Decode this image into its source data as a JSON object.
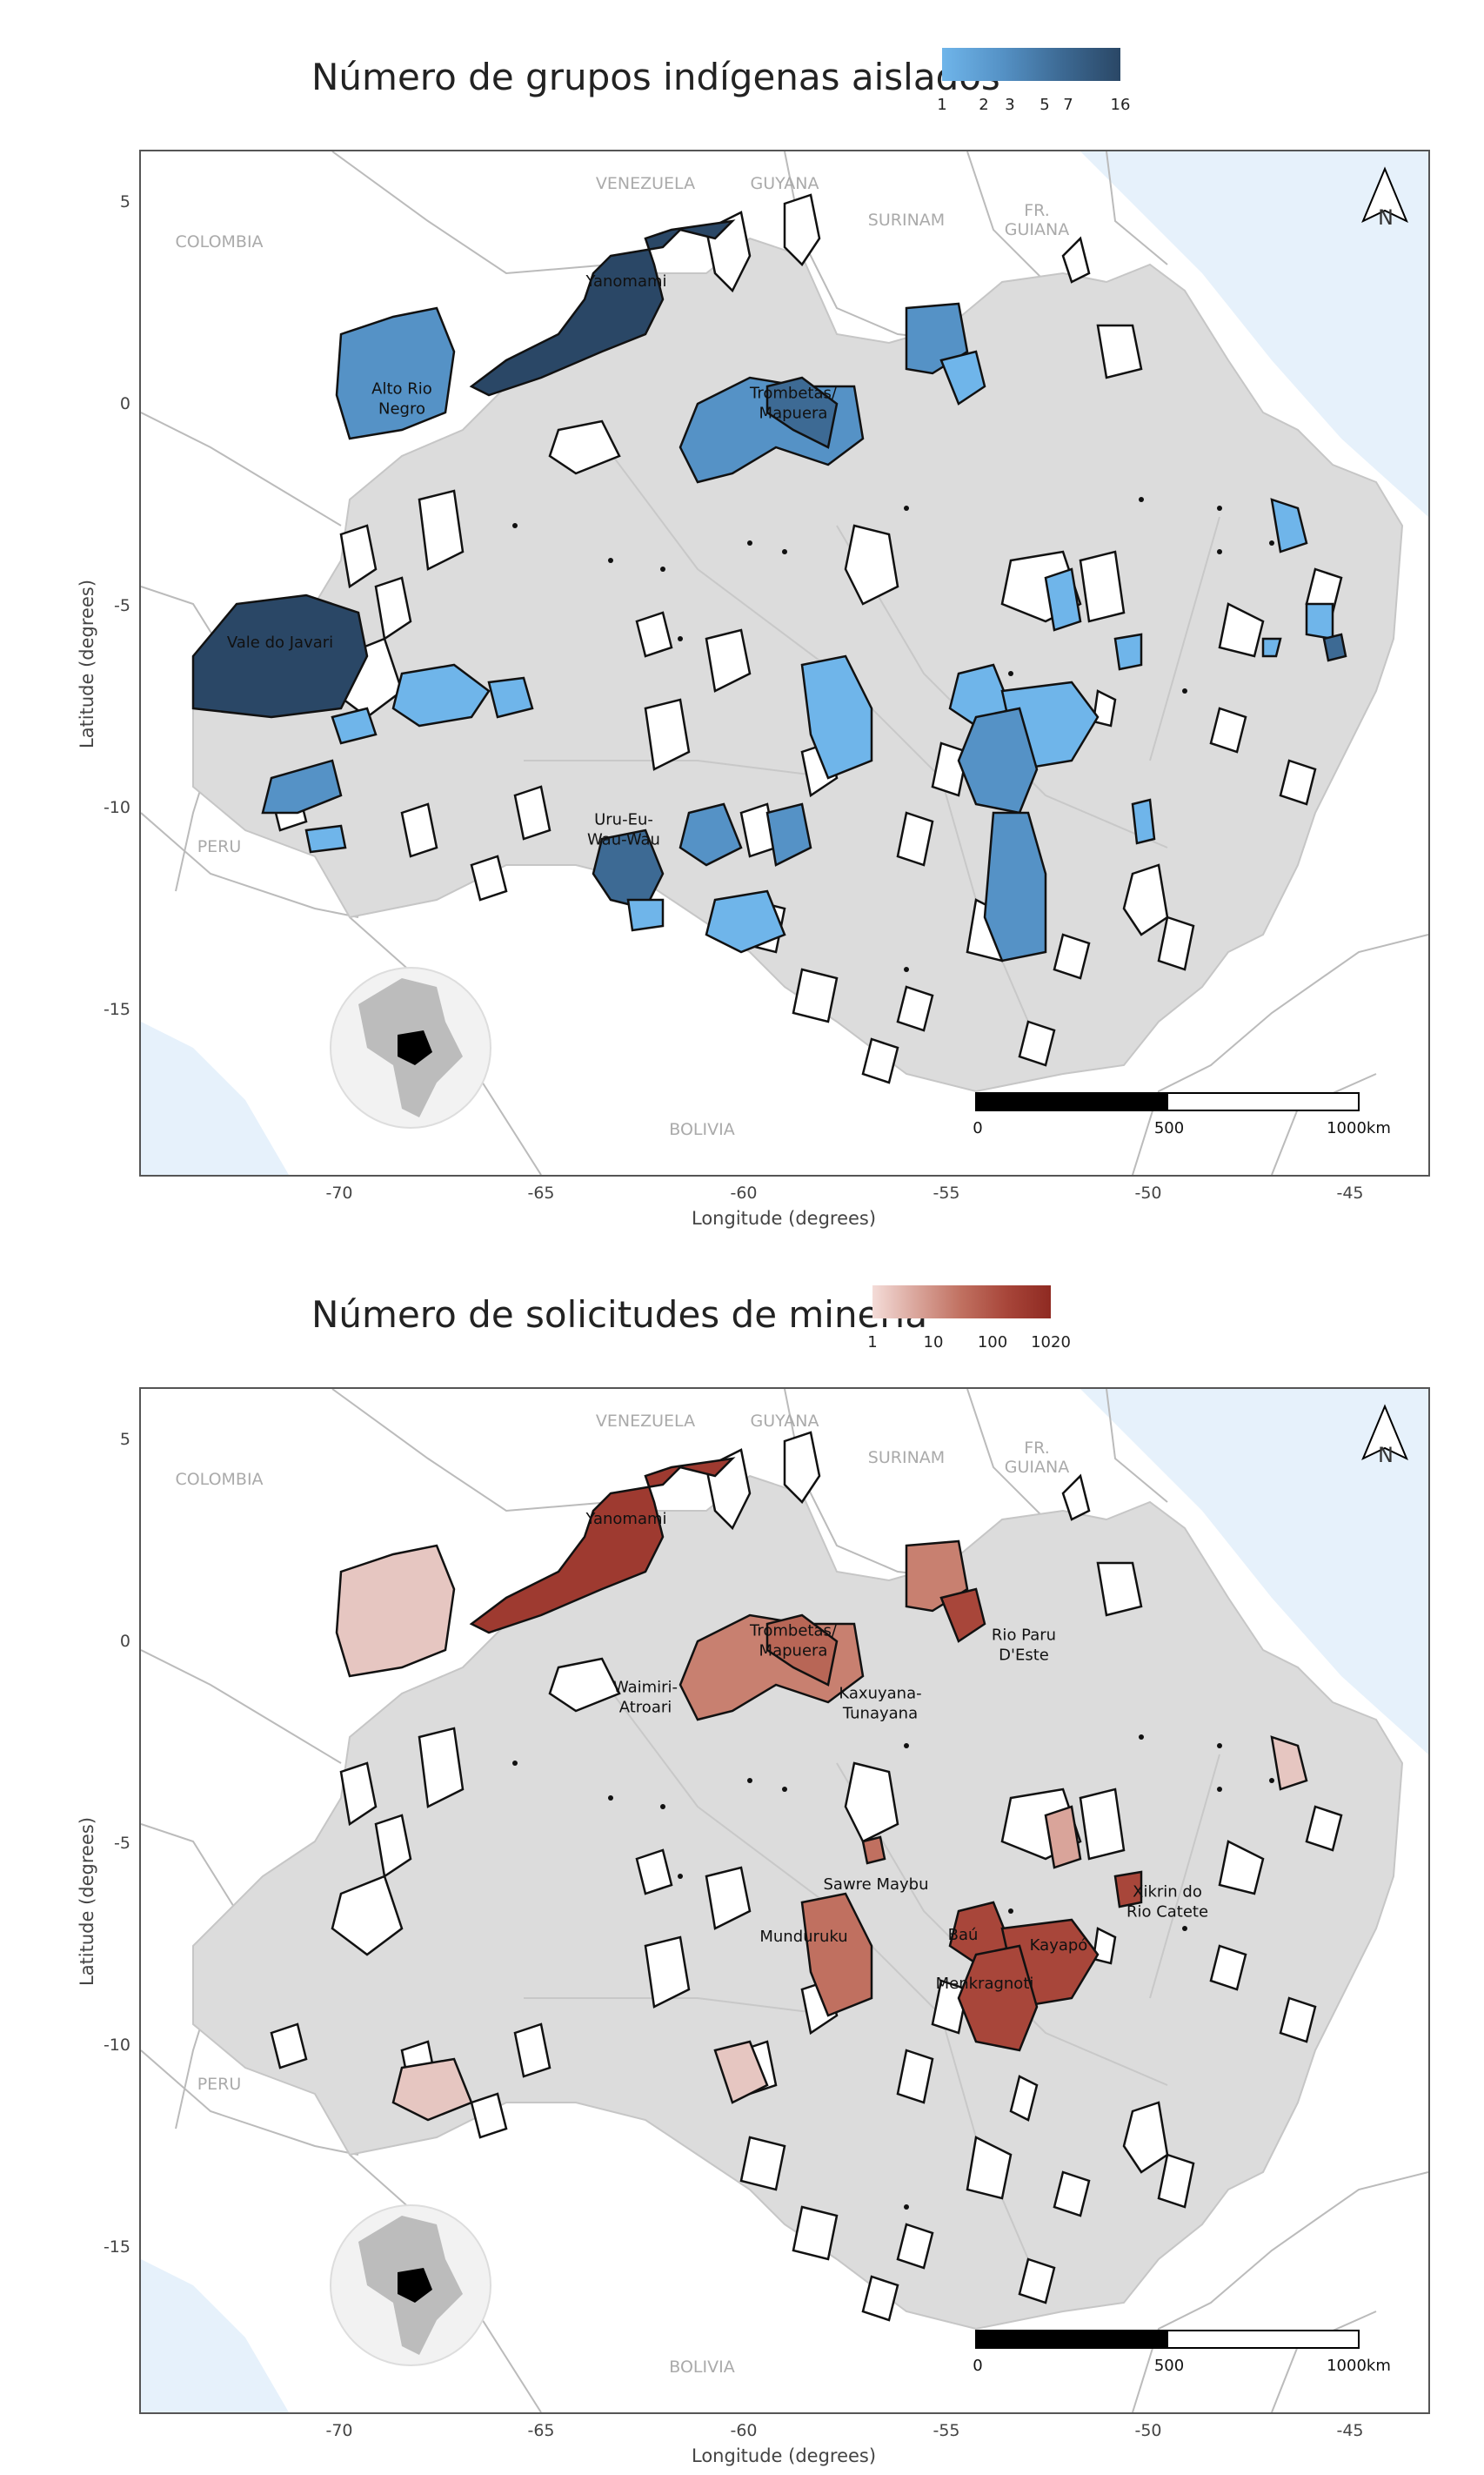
{
  "maps": [
    {
      "legend": {
        "title": "Número de grupos indígenas aislados",
        "ticks": [
          "1",
          "2",
          "3",
          "5",
          "7",
          "16"
        ],
        "colors": [
          "#6fb5ea",
          "#5592c6",
          "#3d6a94",
          "#2a4766"
        ]
      },
      "axes": {
        "xlabel": "Longitude (degrees)",
        "ylabel": "Latitude (degrees)",
        "x_ticks": [
          "-70",
          "-65",
          "-60",
          "-55",
          "-50",
          "-45"
        ],
        "y_ticks": [
          "5",
          "0",
          "-5",
          "-10",
          "-15"
        ]
      },
      "countries": [
        "VENEZUELA",
        "GUYANA",
        "SURINAM",
        "FR.\nGUIANA",
        "COLOMBIA",
        "PERU",
        "BOLIVIA"
      ],
      "territory_labels": [
        "Yanomami",
        "Alto Rio\nNegro",
        "Trombetas/\nMapuera",
        "Vale do Javari",
        "Uru-Eu-\nWau-Wau"
      ],
      "scale": [
        "0",
        "500",
        "1000km"
      ],
      "north": "N"
    },
    {
      "legend": {
        "title": "Número de solicitudes de minería",
        "ticks": [
          "1",
          "10",
          "100",
          "1020"
        ],
        "colors": [
          "#f4dcd8",
          "#d9a49a",
          "#c07060",
          "#a8463a",
          "#8f2a22"
        ]
      },
      "axes": {
        "xlabel": "Longitude (degrees)",
        "ylabel": "Latitude (degrees)",
        "x_ticks": [
          "-70",
          "-65",
          "-60",
          "-55",
          "-50",
          "-45"
        ],
        "y_ticks": [
          "5",
          "0",
          "-5",
          "-10",
          "-15"
        ]
      },
      "countries": [
        "VENEZUELA",
        "GUYANA",
        "SURINAM",
        "FR.\nGUIANA",
        "COLOMBIA",
        "PERU",
        "BOLIVIA"
      ],
      "territory_labels": [
        "Yanomami",
        "Trombetas/\nMapuera",
        "Rio Paru\nD'Este",
        "Waimiri-\nAtroari",
        "Kaxuyana-\nTunayana",
        "Sawre Maybu",
        "Xikrin do\nRio Catete",
        "Munduruku",
        "Baú",
        "Kayapó",
        "Menkragnoti"
      ],
      "scale": [
        "0",
        "500",
        "1000km"
      ],
      "north": "N"
    }
  ]
}
